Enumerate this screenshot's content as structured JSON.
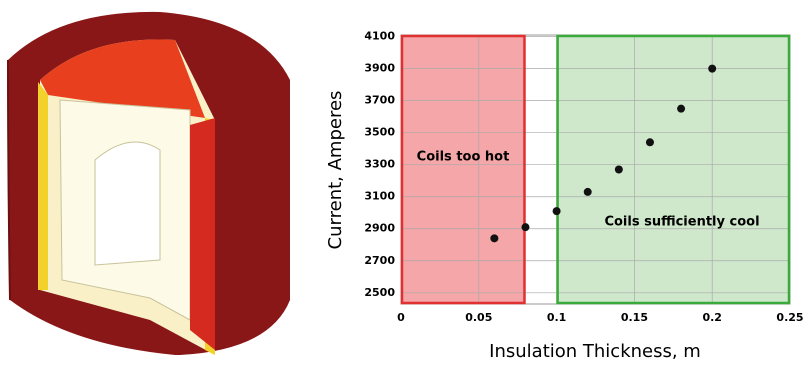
{
  "chart_data": {
    "type": "scatter",
    "x_label": "Insulation Thickness, m",
    "y_label": "Current, Amperes",
    "x": [
      0.06,
      0.08,
      0.1,
      0.12,
      0.14,
      0.16,
      0.18,
      0.2
    ],
    "values": [
      2840,
      2910,
      3010,
      3130,
      3270,
      3440,
      3650,
      3900
    ],
    "color": "#111111",
    "xlim": [
      0,
      0.25
    ],
    "xticks": [
      0,
      0.05,
      0.1,
      0.15,
      0.2,
      0.25
    ],
    "ylim": [
      2430,
      4110
    ],
    "yticks": [
      2500,
      2700,
      2900,
      3100,
      3300,
      3500,
      3700,
      3900,
      4100
    ],
    "grid": true,
    "regions": [
      {
        "label": "Coils too hot",
        "x": [
          0,
          0.08
        ],
        "color": "#e03030",
        "fill": "#f4a6a8"
      },
      {
        "label": "Coils sufficiently cool",
        "x": [
          0.1,
          0.25
        ],
        "color": "#3aaa3a",
        "fill": "#cfe8cc"
      }
    ]
  }
}
